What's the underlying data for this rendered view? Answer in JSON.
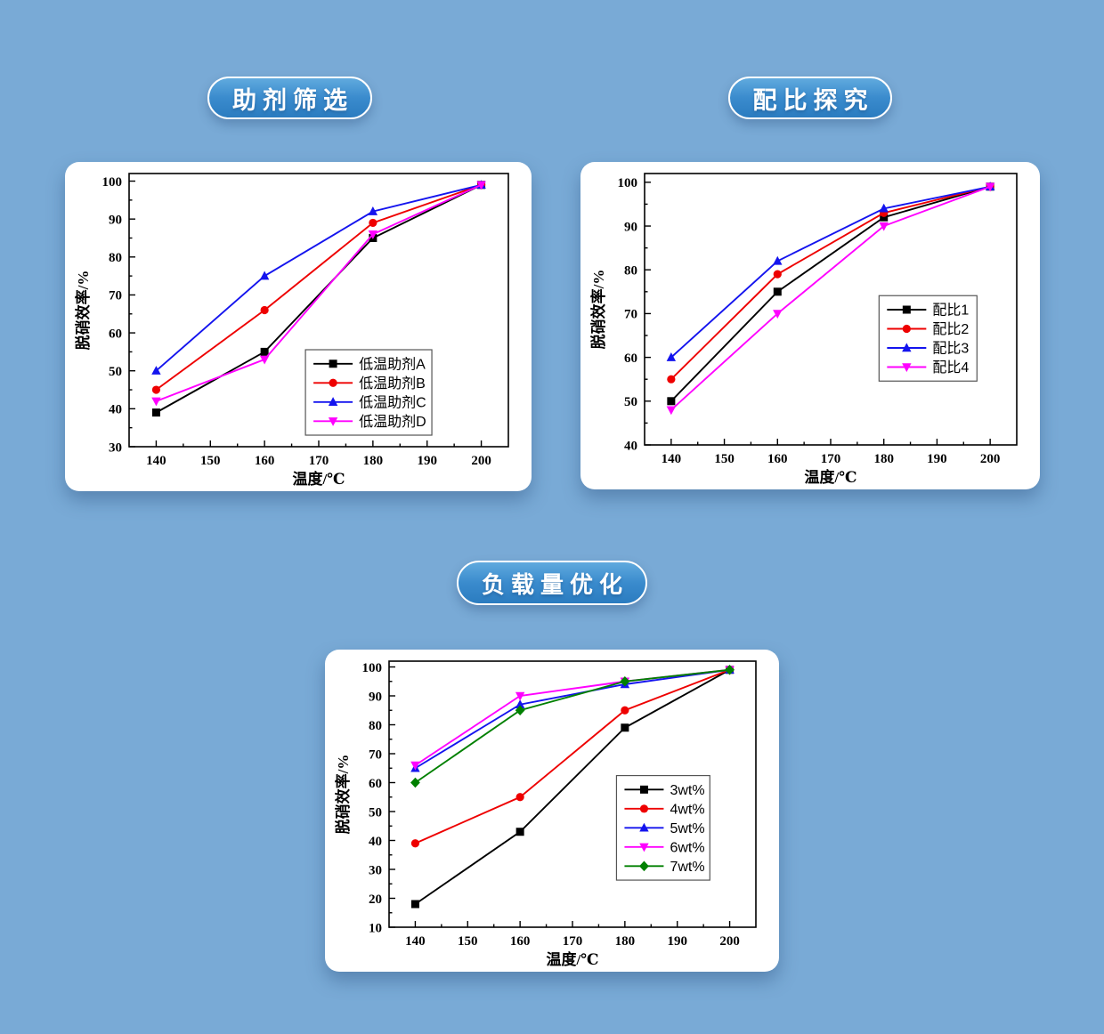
{
  "page": {
    "background_color": "#79aad6",
    "card_color": "#ffffff",
    "pill_gradient_top": "#60aade",
    "pill_gradient_bottom": "#2b7cc0",
    "pill_text_color": "#ffffff"
  },
  "sections": [
    {
      "id": "additive-screening",
      "title": "助剂筛选",
      "chart_data": {
        "type": "line",
        "x": [
          140,
          160,
          180,
          200
        ],
        "xlabel": "温度/℃",
        "ylabel": "脱硝效率/%",
        "xlim": [
          135,
          205
        ],
        "ylim": [
          30,
          102
        ],
        "xticks": [
          140,
          150,
          160,
          170,
          180,
          190,
          200
        ],
        "yticks": [
          30,
          40,
          50,
          60,
          70,
          80,
          90,
          100
        ],
        "minor_step": 5,
        "grid": false,
        "legend_position": "lower-right",
        "legend_frac": {
          "x": 0.465,
          "y": 0.645
        },
        "series": [
          {
            "name": "低温助剂A",
            "color": "#000000",
            "marker": "square",
            "values": [
              39,
              55,
              85,
              99
            ]
          },
          {
            "name": "低温助剂B",
            "color": "#ee0000",
            "marker": "circle",
            "values": [
              45,
              66,
              89,
              99
            ]
          },
          {
            "name": "低温助剂C",
            "color": "#1414ee",
            "marker": "triangle-up",
            "values": [
              50,
              75,
              92,
              99
            ]
          },
          {
            "name": "低温助剂D",
            "color": "#ff00ff",
            "marker": "triangle-down",
            "values": [
              42,
              53,
              86,
              99
            ]
          }
        ]
      }
    },
    {
      "id": "ratio-exploration",
      "title": "配比探究",
      "chart_data": {
        "type": "line",
        "x": [
          140,
          160,
          180,
          200
        ],
        "xlabel": "温度/℃",
        "ylabel": "脱硝效率/%",
        "xlim": [
          135,
          205
        ],
        "ylim": [
          40,
          102
        ],
        "xticks": [
          140,
          150,
          160,
          170,
          180,
          190,
          200
        ],
        "yticks": [
          40,
          50,
          60,
          70,
          80,
          90,
          100
        ],
        "minor_step": 5,
        "grid": false,
        "legend_position": "middle-right",
        "legend_frac": {
          "x": 0.63,
          "y": 0.45
        },
        "series": [
          {
            "name": "配比1",
            "color": "#000000",
            "marker": "square",
            "values": [
              50,
              75,
              92,
              99
            ]
          },
          {
            "name": "配比2",
            "color": "#ee0000",
            "marker": "circle",
            "values": [
              55,
              79,
              93,
              99
            ]
          },
          {
            "name": "配比3",
            "color": "#1414ee",
            "marker": "triangle-up",
            "values": [
              60,
              82,
              94,
              99
            ]
          },
          {
            "name": "配比4",
            "color": "#ff00ff",
            "marker": "triangle-down",
            "values": [
              48,
              70,
              90,
              99
            ]
          }
        ]
      }
    },
    {
      "id": "loading-optimization",
      "title": "负载量优化",
      "chart_data": {
        "type": "line",
        "x": [
          140,
          160,
          180,
          200
        ],
        "xlabel": "温度/℃",
        "ylabel": "脱硝效率/%",
        "xlim": [
          135,
          205
        ],
        "ylim": [
          10,
          102
        ],
        "xticks": [
          140,
          150,
          160,
          170,
          180,
          190,
          200
        ],
        "yticks": [
          10,
          20,
          30,
          40,
          50,
          60,
          70,
          80,
          90,
          100
        ],
        "minor_step": 5,
        "grid": false,
        "legend_position": "middle-right",
        "legend_frac": {
          "x": 0.62,
          "y": 0.43
        },
        "series": [
          {
            "name": "3wt%",
            "color": "#000000",
            "marker": "square",
            "values": [
              18,
              43,
              79,
              99
            ]
          },
          {
            "name": "4wt%",
            "color": "#ee0000",
            "marker": "circle",
            "values": [
              39,
              55,
              85,
              99
            ]
          },
          {
            "name": "5wt%",
            "color": "#1414ee",
            "marker": "triangle-up",
            "values": [
              65,
              87,
              94,
              99
            ]
          },
          {
            "name": "6wt%",
            "color": "#ff00ff",
            "marker": "triangle-down",
            "values": [
              66,
              90,
              95,
              99
            ]
          },
          {
            "name": "7wt%",
            "color": "#008000",
            "marker": "diamond",
            "values": [
              60,
              85,
              95,
              99
            ]
          }
        ]
      }
    }
  ]
}
